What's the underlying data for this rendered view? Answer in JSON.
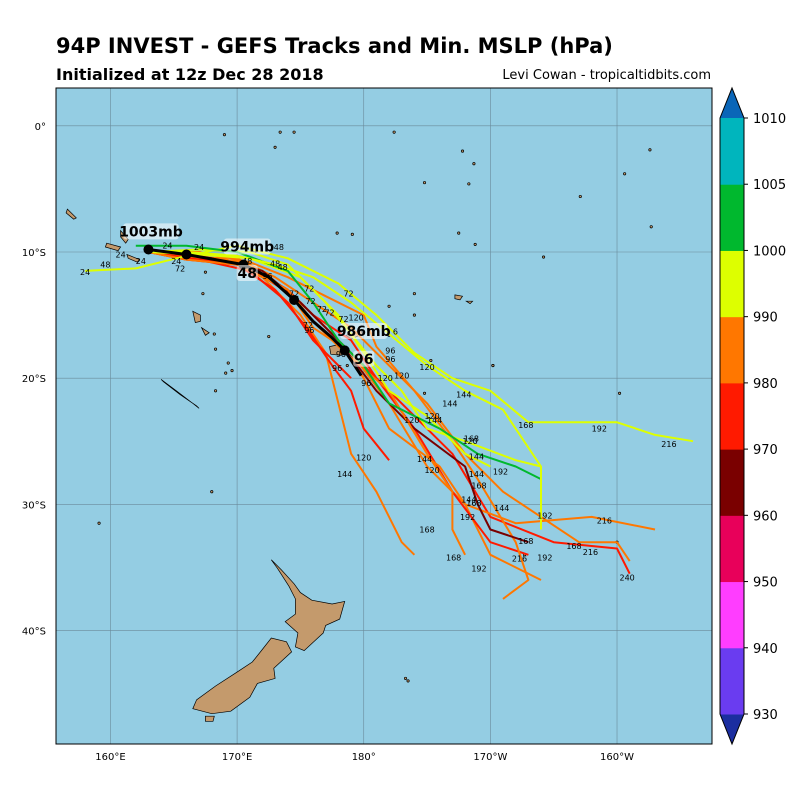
{
  "header": {
    "title": "94P INVEST - GEFS Tracks and Min. MSLP (hPa)",
    "subtitle": "Initialized at 12z Dec 28 2018",
    "credit": "Levi Cowan - tropicaltidbits.com"
  },
  "map": {
    "lon_range": [
      155.7,
      -152.5
    ],
    "lat_range": [
      3,
      -49
    ],
    "lon_ticks": [
      "160°E",
      "170°E",
      "180°",
      "170°W",
      "160°W"
    ],
    "lat_ticks": [
      "0°",
      "10°S",
      "20°S",
      "30°S",
      "40°S"
    ],
    "ocean_color": "#94cde3",
    "land_color": "#c49a6c"
  },
  "colorbar": {
    "ticks": [
      "930",
      "940",
      "950",
      "960",
      "970",
      "980",
      "990",
      "1000",
      "1005",
      "1010"
    ],
    "colors": [
      "#1b2ea0",
      "#6a3cf0",
      "#ff3dff",
      "#e8005a",
      "#7a0000",
      "#ff1a00",
      "#ff7700",
      "#ddff00",
      "#00b82e",
      "#00b5bd",
      "#0a66b8"
    ]
  },
  "tracks": [
    {
      "color": "#ff7700",
      "points": [
        [
          163,
          -10
        ],
        [
          166,
          -10.6
        ],
        [
          170,
          -10.7
        ],
        [
          174,
          -13
        ],
        [
          176,
          -16
        ],
        [
          179,
          -18
        ],
        [
          -178,
          -22
        ],
        [
          -175,
          -27
        ],
        [
          -172,
          -30
        ],
        [
          -170,
          -34
        ],
        [
          -166,
          -36
        ]
      ]
    },
    {
      "color": "#ff1a00",
      "points": [
        [
          163,
          -10
        ],
        [
          166,
          -10.5
        ],
        [
          170.5,
          -11
        ],
        [
          174,
          -13
        ],
        [
          176,
          -15
        ],
        [
          179,
          -17
        ],
        [
          -179,
          -20
        ],
        [
          -176,
          -24
        ],
        [
          -173,
          -29
        ],
        [
          -170,
          -33
        ],
        [
          -167,
          -34
        ]
      ]
    },
    {
      "color": "#ff1a00",
      "points": [
        [
          163,
          -10
        ],
        [
          166,
          -10.3
        ],
        [
          170.5,
          -11
        ],
        [
          174.5,
          -13.5
        ],
        [
          177,
          -16
        ],
        [
          180,
          -19
        ],
        [
          -177,
          -22
        ],
        [
          -173,
          -26
        ],
        [
          -170,
          -31
        ],
        [
          -165,
          -33
        ],
        [
          -160,
          -33.5
        ],
        [
          -159,
          -35.5
        ]
      ]
    },
    {
      "color": "#ff7700",
      "points": [
        [
          163,
          -10
        ],
        [
          167,
          -10.3
        ],
        [
          171,
          -11
        ],
        [
          175,
          -14
        ],
        [
          178,
          -17
        ],
        [
          180,
          -20
        ],
        [
          -178,
          -24
        ],
        [
          -174,
          -27
        ],
        [
          -172,
          -30
        ],
        [
          -168,
          -31.5
        ],
        [
          -162,
          -31
        ],
        [
          -157,
          -32
        ]
      ]
    },
    {
      "color": "#ff7700",
      "points": [
        [
          163,
          -10
        ],
        [
          166,
          -10
        ],
        [
          170,
          -10.5
        ],
        [
          173,
          -12
        ],
        [
          176,
          -14
        ],
        [
          179,
          -16
        ],
        [
          -178,
          -19
        ],
        [
          -175,
          -22
        ],
        [
          -172,
          -26
        ],
        [
          -169,
          -29
        ],
        [
          -163,
          -33
        ],
        [
          -160,
          -33
        ],
        [
          -159,
          -34.5
        ]
      ]
    },
    {
      "color": "#ff7700",
      "points": [
        [
          163,
          -10
        ],
        [
          167,
          -10
        ],
        [
          171,
          -10.8
        ],
        [
          174,
          -12
        ],
        [
          177,
          -13.5
        ],
        [
          180,
          -15
        ],
        [
          -179,
          -17.5
        ],
        [
          -176,
          -21
        ],
        [
          -173,
          -25
        ],
        [
          -171,
          -28
        ],
        [
          -168,
          -33
        ],
        [
          -167,
          -36
        ],
        [
          -169,
          -37.5
        ]
      ]
    },
    {
      "color": "#ff7700",
      "points": [
        [
          163,
          -10
        ],
        [
          166,
          -10.4
        ],
        [
          169,
          -10.5
        ],
        [
          172,
          -12
        ],
        [
          175,
          -15
        ],
        [
          177,
          -18
        ],
        [
          178,
          -22
        ],
        [
          179,
          -26
        ],
        [
          -179,
          -29
        ],
        [
          -178,
          -31
        ],
        [
          -177,
          -33
        ],
        [
          -176,
          -34
        ]
      ]
    },
    {
      "color": "#ff1a00",
      "points": [
        [
          163,
          -10
        ],
        [
          166,
          -10.6
        ],
        [
          170,
          -11
        ],
        [
          173,
          -13
        ],
        [
          175.5,
          -16
        ],
        [
          177.5,
          -19
        ],
        [
          179,
          -21
        ],
        [
          180,
          -24
        ],
        [
          -178,
          -26.5
        ]
      ]
    },
    {
      "color": "#ff1a00",
      "points": [
        [
          163,
          -10
        ],
        [
          167,
          -10.6
        ],
        [
          171,
          -11.5
        ],
        [
          174,
          -14
        ],
        [
          176,
          -17
        ],
        [
          178,
          -19
        ],
        [
          179,
          -20
        ]
      ]
    },
    {
      "color": "#7a0000",
      "points": [
        [
          164,
          -10
        ],
        [
          168,
          -10.5
        ],
        [
          172,
          -11.5
        ],
        [
          175,
          -14
        ],
        [
          178,
          -17
        ],
        [
          -179,
          -21
        ],
        [
          -176,
          -24
        ],
        [
          -172,
          -27
        ],
        [
          -171,
          -30
        ],
        [
          -170,
          -32
        ],
        [
          -167,
          -33
        ]
      ]
    },
    {
      "color": "#ff7700",
      "points": [
        [
          163,
          -10
        ],
        [
          166,
          -10.6
        ],
        [
          170,
          -11
        ],
        [
          174,
          -13
        ],
        [
          176,
          -15.5
        ],
        [
          178,
          -17.5
        ],
        [
          -178,
          -21
        ],
        [
          -175,
          -26
        ],
        [
          -173,
          -29
        ],
        [
          -173,
          -32
        ],
        [
          -172,
          -34
        ]
      ]
    },
    {
      "color": "#ddff00",
      "points": [
        [
          158,
          -11.5
        ],
        [
          162,
          -11.3
        ],
        [
          166,
          -10.3
        ],
        [
          170,
          -9.5
        ],
        [
          174,
          -10.5
        ],
        [
          178,
          -12.5
        ],
        [
          -179,
          -15
        ],
        [
          -176,
          -18
        ],
        [
          -173,
          -20
        ],
        [
          -170,
          -21
        ],
        [
          -167,
          -23.5
        ],
        [
          -160,
          -23.5
        ],
        [
          -157,
          -24.5
        ],
        [
          -154,
          -25
        ]
      ]
    },
    {
      "color": "#ddff00",
      "points": [
        [
          163,
          -10
        ],
        [
          167,
          -10.2
        ],
        [
          171,
          -10.5
        ],
        [
          175,
          -12
        ],
        [
          177,
          -14
        ],
        [
          179,
          -16.5
        ],
        [
          -179,
          -19
        ],
        [
          -177,
          -21
        ],
        [
          -175,
          -24
        ],
        [
          -172,
          -25
        ],
        [
          -168,
          -26.5
        ],
        [
          -166,
          -27
        ]
      ]
    },
    {
      "color": "#ddff00",
      "points": [
        [
          163,
          -10
        ],
        [
          167,
          -9.8
        ],
        [
          171,
          -10
        ],
        [
          174,
          -11
        ],
        [
          176,
          -13
        ],
        [
          178,
          -15
        ],
        [
          180,
          -18
        ],
        [
          -178,
          -21
        ],
        [
          -175,
          -23
        ],
        [
          -172,
          -26
        ],
        [
          -170,
          -27
        ]
      ]
    },
    {
      "color": "#00b82e",
      "points": [
        [
          162,
          -9.5
        ],
        [
          166,
          -9.5
        ],
        [
          170,
          -10
        ],
        [
          174,
          -11.5
        ],
        [
          176,
          -14
        ],
        [
          178,
          -17
        ],
        [
          180,
          -19
        ],
        [
          -178,
          -22
        ],
        [
          -174,
          -24
        ],
        [
          -171,
          -26
        ],
        [
          -168,
          -27
        ],
        [
          -166,
          -28
        ]
      ]
    },
    {
      "color": "#ddff00",
      "points": [
        [
          163,
          -10
        ],
        [
          166,
          -10
        ],
        [
          170,
          -10.3
        ],
        [
          173,
          -11
        ],
        [
          176,
          -12
        ],
        [
          179,
          -14
        ],
        [
          -178,
          -16.5
        ],
        [
          -175,
          -19
        ],
        [
          -172,
          -21
        ],
        [
          -169,
          -22.5
        ],
        [
          -166,
          -27
        ],
        [
          -166,
          -32
        ]
      ]
    },
    {
      "color": "#000000",
      "points": [
        [
          163,
          -9.8
        ],
        [
          166,
          -10.2
        ],
        [
          170.5,
          -11
        ],
        [
          172.5,
          -12
        ],
        [
          174.5,
          -13.8
        ],
        [
          176,
          -15.5
        ],
        [
          177.5,
          -16.8
        ],
        [
          178.5,
          -17.8
        ],
        [
          179.8,
          -19.8
        ]
      ]
    }
  ],
  "hour_labels": [
    {
      "text": "24",
      "lon": 158,
      "lat": -11.6
    },
    {
      "text": "48",
      "lon": 159.6,
      "lat": -11
    },
    {
      "text": "24",
      "lon": 160.8,
      "lat": -10.2
    },
    {
      "text": "24",
      "lon": 162.4,
      "lat": -10.7
    },
    {
      "text": "24",
      "lon": 164.5,
      "lat": -9.5
    },
    {
      "text": "24",
      "lon": 165.2,
      "lat": -10.7
    },
    {
      "text": "72",
      "lon": 165.5,
      "lat": -11.3
    },
    {
      "text": "24",
      "lon": 167,
      "lat": -9.6
    },
    {
      "text": "48",
      "lon": 170.8,
      "lat": -10.7
    },
    {
      "text": "48",
      "lon": 173.3,
      "lat": -9.6
    },
    {
      "text": "48",
      "lon": 173,
      "lat": -10.9
    },
    {
      "text": "48",
      "lon": 173.6,
      "lat": -11.2
    },
    {
      "text": "96",
      "lon": 172.4,
      "lat": -11.9
    },
    {
      "text": "72",
      "lon": 174.5,
      "lat": -13.3
    },
    {
      "text": "72",
      "lon": 175.7,
      "lat": -12.9
    },
    {
      "text": "72",
      "lon": 175.8,
      "lat": -13.9
    },
    {
      "text": "72",
      "lon": 178.8,
      "lat": -13.3
    },
    {
      "text": "72",
      "lon": 176.7,
      "lat": -14.5
    },
    {
      "text": "72",
      "lon": 177.3,
      "lat": -14.8
    },
    {
      "text": "72",
      "lon": 175.6,
      "lat": -15.8
    },
    {
      "text": "72",
      "lon": 178.4,
      "lat": -15.3
    },
    {
      "text": "120",
      "lon": 179.4,
      "lat": -15.2
    },
    {
      "text": "96",
      "lon": 175.7,
      "lat": -16.2
    },
    {
      "text": "6",
      "lon": -177.5,
      "lat": -16.3
    },
    {
      "text": "96",
      "lon": -177.9,
      "lat": -17.8
    },
    {
      "text": "96",
      "lon": -177.9,
      "lat": -18.5
    },
    {
      "text": "96",
      "lon": 178.2,
      "lat": -18.1
    },
    {
      "text": "96",
      "lon": 177.9,
      "lat": -19.2
    },
    {
      "text": "96",
      "lon": 180.2,
      "lat": -20.4
    },
    {
      "text": "120",
      "lon": -178.3,
      "lat": -20
    },
    {
      "text": "120",
      "lon": -177,
      "lat": -19.8
    },
    {
      "text": "120",
      "lon": -175,
      "lat": -19.1
    },
    {
      "text": "144",
      "lon": -172.1,
      "lat": -21.3
    },
    {
      "text": "144",
      "lon": -173.2,
      "lat": -22
    },
    {
      "text": "120",
      "lon": -176.2,
      "lat": -23.3
    },
    {
      "text": "120",
      "lon": -174.6,
      "lat": -23
    },
    {
      "text": "144",
      "lon": -174.4,
      "lat": -23.3
    },
    {
      "text": "168",
      "lon": -167.2,
      "lat": -23.7
    },
    {
      "text": "192",
      "lon": -161.4,
      "lat": -24
    },
    {
      "text": "216",
      "lon": -155.9,
      "lat": -25.2
    },
    {
      "text": "120",
      "lon": -171.6,
      "lat": -25
    },
    {
      "text": "168",
      "lon": -171.5,
      "lat": -24.8
    },
    {
      "text": "120",
      "lon": 180,
      "lat": -26.3
    },
    {
      "text": "144",
      "lon": -175.2,
      "lat": -26.4
    },
    {
      "text": "144",
      "lon": -171.1,
      "lat": -26.2
    },
    {
      "text": "120",
      "lon": -174.6,
      "lat": -27.3
    },
    {
      "text": "192",
      "lon": -169.2,
      "lat": -27.4
    },
    {
      "text": "144",
      "lon": 178.5,
      "lat": -27.6
    },
    {
      "text": "144",
      "lon": -171.1,
      "lat": -27.6
    },
    {
      "text": "168",
      "lon": -170.9,
      "lat": -28.5
    },
    {
      "text": "144",
      "lon": -171.7,
      "lat": -29.6
    },
    {
      "text": "168",
      "lon": -171.3,
      "lat": -29.9
    },
    {
      "text": "144",
      "lon": -169.1,
      "lat": -30.3
    },
    {
      "text": "192",
      "lon": -171.8,
      "lat": -31
    },
    {
      "text": "192",
      "lon": -165.7,
      "lat": -30.9
    },
    {
      "text": "216",
      "lon": -161,
      "lat": -31.3
    },
    {
      "text": "168",
      "lon": -167.2,
      "lat": -32.9
    },
    {
      "text": "168",
      "lon": -175,
      "lat": -32
    },
    {
      "text": "168",
      "lon": -163.4,
      "lat": -33.3
    },
    {
      "text": "216",
      "lon": -162.1,
      "lat": -33.8
    },
    {
      "text": "168",
      "lon": -172.9,
      "lat": -34.2
    },
    {
      "text": "216",
      "lon": -167.7,
      "lat": -34.3
    },
    {
      "text": "192",
      "lon": -165.7,
      "lat": -34.2
    },
    {
      "text": "192",
      "lon": -170.9,
      "lat": -35.1
    },
    {
      "text": "240",
      "lon": -159.2,
      "lat": -35.8
    }
  ],
  "annotations": [
    {
      "text": "1003mb",
      "lon": 163.2,
      "lat": -8.6
    },
    {
      "text": "994mb",
      "lon": 170.8,
      "lat": -9.8
    },
    {
      "text": "48",
      "lon": 170.8,
      "lat": -11.9
    },
    {
      "text": "986mb",
      "lon": 180,
      "lat": -16.5
    },
    {
      "text": "96",
      "lon": 180,
      "lat": -18.7
    }
  ],
  "markers": [
    {
      "lon": 163,
      "lat": -9.8
    },
    {
      "lon": 166,
      "lat": -10.2
    },
    {
      "lon": 170.5,
      "lat": -11
    },
    {
      "lon": 174.5,
      "lat": -13.8
    },
    {
      "lon": 178.5,
      "lat": -17.8
    }
  ]
}
